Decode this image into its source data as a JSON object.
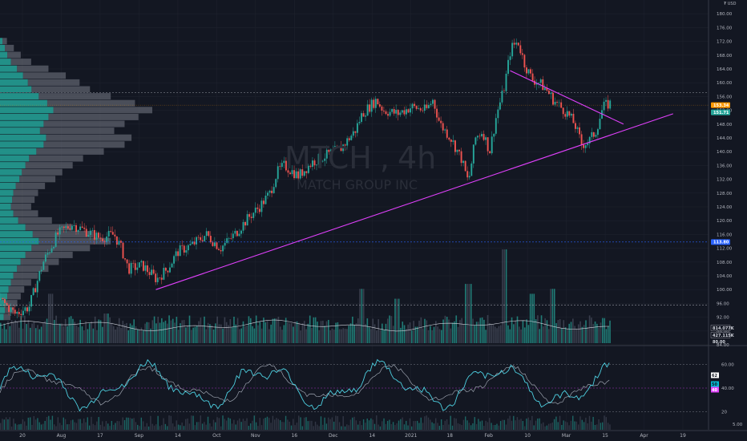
{
  "symbol": {
    "ticker": "MTCH",
    "interval": "4h",
    "name": "MATCH GROUP INC"
  },
  "currency_label": "₮ USD",
  "chart_data": {
    "type": "candlestick",
    "x_axis": {
      "labels": [
        "20",
        "Aug",
        "17",
        "Sep",
        "14",
        "Oct",
        "Nov",
        "16",
        "Dec",
        "14",
        "2021",
        "18",
        "Feb",
        "10",
        "Mar",
        "15",
        "Apr",
        "19"
      ]
    },
    "price_axis": {
      "ylim": [
        84,
        184
      ],
      "ticks": [
        "180.00",
        "176.00",
        "172.00",
        "168.00",
        "164.00",
        "160.00",
        "156.00",
        "152.00",
        "148.00",
        "144.00",
        "140.00",
        "136.00",
        "132.00",
        "128.00",
        "124.00",
        "120.00",
        "116.00",
        "112.00",
        "108.00",
        "104.00",
        "100.00",
        "96.00",
        "92.00",
        "88.00",
        "84.00"
      ],
      "tick_values": [
        180,
        176,
        172,
        168,
        164,
        160,
        156,
        152,
        148,
        144,
        140,
        136,
        132,
        128,
        124,
        120,
        116,
        112,
        108,
        104,
        100,
        96,
        92,
        88,
        84
      ]
    },
    "price_path": [
      [
        0.0,
        97
      ],
      [
        0.02,
        93
      ],
      [
        0.04,
        95
      ],
      [
        0.06,
        108
      ],
      [
        0.08,
        116
      ],
      [
        0.1,
        119
      ],
      [
        0.12,
        117
      ],
      [
        0.14,
        115
      ],
      [
        0.16,
        116
      ],
      [
        0.17,
        112
      ],
      [
        0.18,
        106
      ],
      [
        0.2,
        107
      ],
      [
        0.22,
        103
      ],
      [
        0.235,
        106
      ],
      [
        0.25,
        111
      ],
      [
        0.27,
        113
      ],
      [
        0.29,
        116
      ],
      [
        0.31,
        112
      ],
      [
        0.33,
        116
      ],
      [
        0.35,
        121
      ],
      [
        0.365,
        124
      ],
      [
        0.38,
        128
      ],
      [
        0.39,
        134
      ],
      [
        0.4,
        136
      ],
      [
        0.42,
        133
      ],
      [
        0.44,
        137
      ],
      [
        0.46,
        139
      ],
      [
        0.48,
        141
      ],
      [
        0.5,
        146
      ],
      [
        0.51,
        151
      ],
      [
        0.52,
        153
      ],
      [
        0.53,
        155
      ],
      [
        0.54,
        152
      ],
      [
        0.56,
        151
      ],
      [
        0.58,
        153
      ],
      [
        0.6,
        152
      ],
      [
        0.61,
        155
      ],
      [
        0.62,
        148
      ],
      [
        0.635,
        144
      ],
      [
        0.65,
        138
      ],
      [
        0.66,
        131
      ],
      [
        0.67,
        144
      ],
      [
        0.68,
        146
      ],
      [
        0.69,
        140
      ],
      [
        0.7,
        151
      ],
      [
        0.71,
        158
      ],
      [
        0.72,
        170
      ],
      [
        0.73,
        172
      ],
      [
        0.74,
        165
      ],
      [
        0.75,
        161
      ],
      [
        0.76,
        160
      ],
      [
        0.77,
        158
      ],
      [
        0.78,
        155
      ],
      [
        0.79,
        153
      ],
      [
        0.8,
        151
      ],
      [
        0.81,
        148
      ],
      [
        0.82,
        142
      ],
      [
        0.83,
        143
      ],
      [
        0.84,
        146
      ],
      [
        0.85,
        153
      ],
      [
        0.86,
        154
      ]
    ],
    "volume_profile": [
      {
        "price": 172,
        "width": 0.2
      },
      {
        "price": 170,
        "width": 0.4
      },
      {
        "price": 168,
        "width": 0.6
      },
      {
        "price": 166,
        "width": 0.9
      },
      {
        "price": 164,
        "width": 1.4
      },
      {
        "price": 162,
        "width": 1.9
      },
      {
        "price": 160,
        "width": 2.3
      },
      {
        "price": 158,
        "width": 2.6
      },
      {
        "price": 156,
        "width": 3.2
      },
      {
        "price": 154,
        "width": 3.9
      },
      {
        "price": 152,
        "width": 4.4
      },
      {
        "price": 150,
        "width": 4.0
      },
      {
        "price": 148,
        "width": 3.6
      },
      {
        "price": 146,
        "width": 3.3
      },
      {
        "price": 144,
        "width": 3.8
      },
      {
        "price": 142,
        "width": 3.6
      },
      {
        "price": 140,
        "width": 3.0
      },
      {
        "price": 138,
        "width": 2.4
      },
      {
        "price": 136,
        "width": 2.1
      },
      {
        "price": 134,
        "width": 1.8
      },
      {
        "price": 132,
        "width": 1.6
      },
      {
        "price": 130,
        "width": 1.3
      },
      {
        "price": 128,
        "width": 1.1
      },
      {
        "price": 126,
        "width": 1.0
      },
      {
        "price": 124,
        "width": 0.9
      },
      {
        "price": 122,
        "width": 1.1
      },
      {
        "price": 120,
        "width": 1.5
      },
      {
        "price": 118,
        "width": 2.1
      },
      {
        "price": 116,
        "width": 2.7
      },
      {
        "price": 114,
        "width": 3.2
      },
      {
        "price": 112,
        "width": 2.6
      },
      {
        "price": 110,
        "width": 2.1
      },
      {
        "price": 108,
        "width": 1.7
      },
      {
        "price": 106,
        "width": 1.4
      },
      {
        "price": 104,
        "width": 1.1
      },
      {
        "price": 102,
        "width": 0.9
      },
      {
        "price": 100,
        "width": 0.7
      },
      {
        "price": 98,
        "width": 0.6
      },
      {
        "price": 96,
        "width": 0.5
      },
      {
        "price": 94,
        "width": 0.4
      },
      {
        "price": 92,
        "width": 0.3
      }
    ],
    "volume_pane": {
      "spikes": [
        [
          0.07,
          0.5
        ],
        [
          0.15,
          0.3
        ],
        [
          0.39,
          0.25
        ],
        [
          0.51,
          0.55
        ],
        [
          0.56,
          0.45
        ],
        [
          0.66,
          0.6
        ],
        [
          0.71,
          0.95
        ],
        [
          0.75,
          0.5
        ],
        [
          0.78,
          0.55
        ]
      ]
    },
    "trendlines": [
      {
        "from": [
          0.22,
          100
        ],
        "to": [
          0.95,
          151
        ]
      },
      {
        "from": [
          0.72,
          163.5
        ],
        "to": [
          0.88,
          148
        ]
      }
    ],
    "horizontal_levels": [
      {
        "price": 157.2,
        "style": "dotted"
      },
      {
        "price": 113.8,
        "style": "dotted-blue"
      },
      {
        "price": 95.5,
        "style": "dotted"
      }
    ],
    "price_badges": [
      {
        "price": 153.5,
        "text": "153.34",
        "color": "#ff9800"
      },
      {
        "price": 151.4,
        "text": "151.71",
        "color": "#26a69a"
      },
      {
        "price": 113.8,
        "text": "113.80",
        "color": "#2962ff"
      }
    ],
    "volume_badges": [
      "814.077K",
      "427.115K",
      "80.00"
    ],
    "oscillator": {
      "ticks": [
        "60.00",
        "40.00",
        "20"
      ],
      "tick_values": [
        60,
        40,
        20
      ],
      "ylim": [
        5,
        75
      ],
      "badges": [
        {
          "text": "62",
          "color": "#ffffff",
          "fg": "#131722"
        },
        {
          "text": "50",
          "color": "#00bcd4",
          "fg": "#131722"
        },
        {
          "text": "40",
          "color": "#e040fb",
          "fg": "#ffffff"
        }
      ],
      "bottom_label": "5.00"
    }
  },
  "colors": {
    "background": "#131722",
    "grid": "#1e222d",
    "up": "#26a69a",
    "down": "#ef5350",
    "trendline": "#e040fb",
    "profile": "#26a69a",
    "oscillator_main": "#4dd0e1",
    "oscillator_signal": "#b0b7c3"
  }
}
